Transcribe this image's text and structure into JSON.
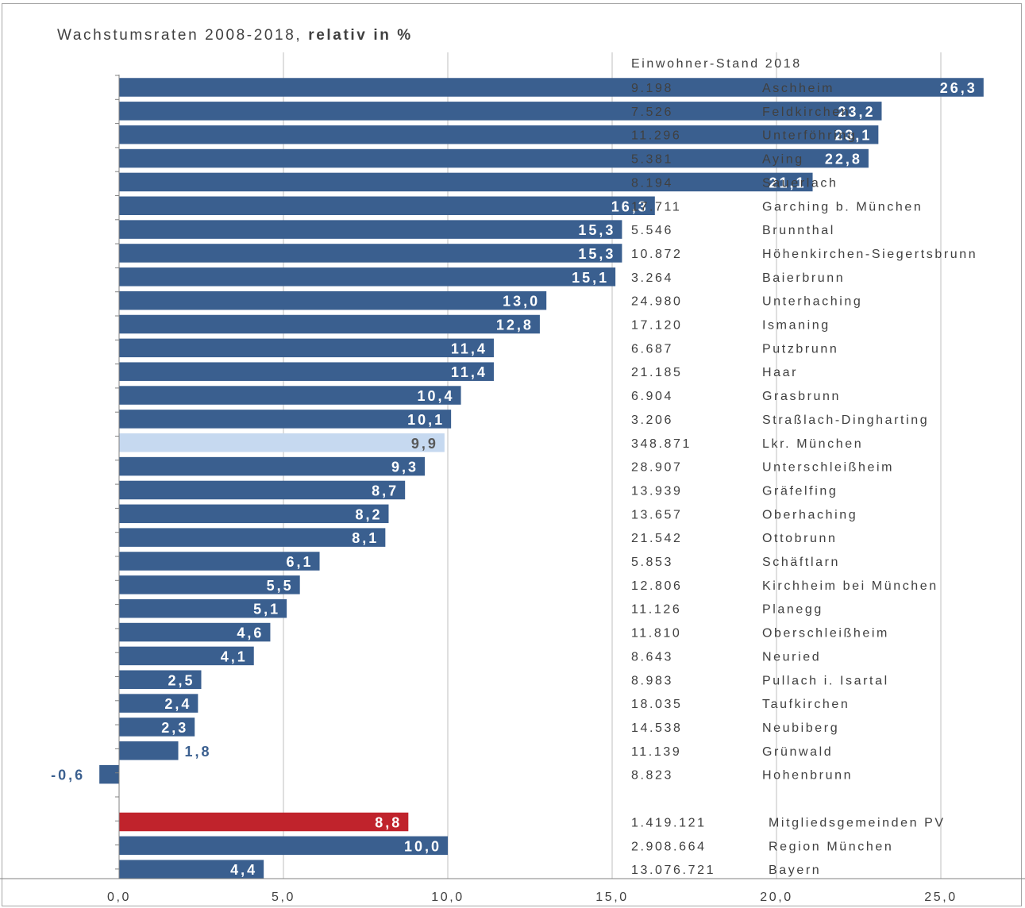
{
  "chart_data": {
    "type": "bar",
    "orientation": "horizontal",
    "title": "Wachstumsraten 2008-2018,",
    "title_bold": "relativ  in %",
    "xlim": [
      -5,
      30
    ],
    "x_ticks": [
      "-5,0",
      "0,0",
      "5,0",
      "10,0",
      "15,0",
      "20,0",
      "25,0",
      "30,0"
    ],
    "grid": "vertical",
    "side_header": "Einwohner-Stand 2018",
    "colors": {
      "bar": "#3a5f8f",
      "highlight": "#c6d9f0",
      "mitglied": "#c0232c",
      "label_inside": "#ffffff",
      "label_outside": "#3a5f8f",
      "label_highlight": "#595959",
      "grid": "#bfbfbf",
      "axis": "#808080"
    },
    "rows": [
      {
        "name": "Aschheim",
        "population": "9.198",
        "value": 26.3,
        "label": "26,3",
        "style": "normal"
      },
      {
        "name": "Feldkirchen",
        "population": "7.526",
        "value": 23.2,
        "label": "23,2",
        "style": "normal"
      },
      {
        "name": "Unterföhring",
        "population": "11.296",
        "value": 23.1,
        "label": "23,1",
        "style": "normal"
      },
      {
        "name": "Aying",
        "population": "5.381",
        "value": 22.8,
        "label": "22,8",
        "style": "normal"
      },
      {
        "name": "Sauerlach",
        "population": "8.194",
        "value": 21.1,
        "label": "21,1",
        "style": "normal"
      },
      {
        "name": "Garching b. München",
        "population": "17.711",
        "value": 16.3,
        "label": "16,3",
        "style": "normal"
      },
      {
        "name": "Brunnthal",
        "population": "5.546",
        "value": 15.3,
        "label": "15,3",
        "style": "normal"
      },
      {
        "name": "Höhenkirchen-Siegertsbrunn",
        "population": "10.872",
        "value": 15.3,
        "label": "15,3",
        "style": "normal"
      },
      {
        "name": "Baierbrunn",
        "population": "3.264",
        "value": 15.1,
        "label": "15,1",
        "style": "normal"
      },
      {
        "name": "Unterhaching",
        "population": "24.980",
        "value": 13.0,
        "label": "13,0",
        "style": "normal"
      },
      {
        "name": "Ismaning",
        "population": "17.120",
        "value": 12.8,
        "label": "12,8",
        "style": "normal"
      },
      {
        "name": "Putzbrunn",
        "population": "6.687",
        "value": 11.4,
        "label": "11,4",
        "style": "normal"
      },
      {
        "name": "Haar",
        "population": "21.185",
        "value": 11.4,
        "label": "11,4",
        "style": "normal"
      },
      {
        "name": "Grasbrunn",
        "population": "6.904",
        "value": 10.4,
        "label": "10,4",
        "style": "normal"
      },
      {
        "name": "Straßlach-Dingharting",
        "population": "3.206",
        "value": 10.1,
        "label": "10,1",
        "style": "normal"
      },
      {
        "name": "Lkr. München",
        "population": "348.871",
        "value": 9.9,
        "label": "9,9",
        "style": "highlight"
      },
      {
        "name": "Unterschleißheim",
        "population": "28.907",
        "value": 9.3,
        "label": "9,3",
        "style": "normal"
      },
      {
        "name": "Gräfelfing",
        "population": "13.939",
        "value": 8.7,
        "label": "8,7",
        "style": "normal"
      },
      {
        "name": "Oberhaching",
        "population": "13.657",
        "value": 8.2,
        "label": "8,2",
        "style": "normal"
      },
      {
        "name": "Ottobrunn",
        "population": "21.542",
        "value": 8.1,
        "label": "8,1",
        "style": "normal"
      },
      {
        "name": "Schäftlarn",
        "population": "5.853",
        "value": 6.1,
        "label": "6,1",
        "style": "normal"
      },
      {
        "name": "Kirchheim bei München",
        "population": "12.806",
        "value": 5.5,
        "label": "5,5",
        "style": "normal"
      },
      {
        "name": "Planegg",
        "population": "11.126",
        "value": 5.1,
        "label": "5,1",
        "style": "normal"
      },
      {
        "name": "Oberschleißheim",
        "population": "11.810",
        "value": 4.6,
        "label": "4,6",
        "style": "normal"
      },
      {
        "name": "Neuried",
        "population": "8.643",
        "value": 4.1,
        "label": "4,1",
        "style": "normal"
      },
      {
        "name": "Pullach i. Isartal",
        "population": "8.983",
        "value": 2.5,
        "label": "2,5",
        "style": "normal"
      },
      {
        "name": "Taufkirchen",
        "population": "18.035",
        "value": 2.4,
        "label": "2,4",
        "style": "normal"
      },
      {
        "name": "Neubiberg",
        "population": "14.538",
        "value": 2.3,
        "label": "2,3",
        "style": "normal"
      },
      {
        "name": "Grünwald",
        "population": "11.139",
        "value": 1.8,
        "label": "1,8",
        "style": "normal"
      },
      {
        "name": "Hohenbrunn",
        "population": "8.823",
        "value": -0.6,
        "label": "-0,6",
        "style": "normal"
      }
    ],
    "summary_rows": [
      {
        "name": "Mitgliedsgemeinden PV",
        "population": "1.419.121",
        "value": 8.8,
        "label": "8,8",
        "style": "mitglied"
      },
      {
        "name": "Region München",
        "population": "2.908.664",
        "value": 10.0,
        "label": "10,0",
        "style": "normal"
      },
      {
        "name": "Bayern",
        "population": "13.076.721",
        "value": 4.4,
        "label": "4,4",
        "style": "normal"
      }
    ]
  }
}
